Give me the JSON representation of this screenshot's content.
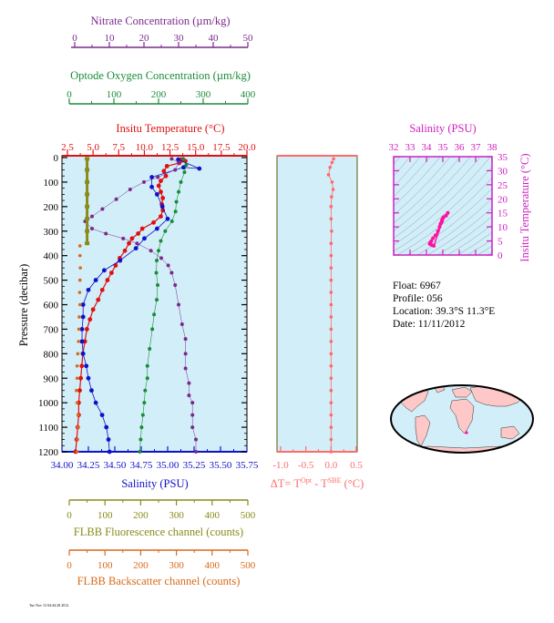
{
  "colors": {
    "nitrate": "#7a2a8c",
    "oxygen": "#1a8c3a",
    "temperature": "#e01010",
    "salinity": "#1010c8",
    "panel_bg": "#d2eef8",
    "fluorescence": "#8a8a1a",
    "backscatter": "#d86a1a",
    "delta_t": "#ff6a6a",
    "ts_axis": "#d020c0",
    "ts_points": "#ff10a0",
    "land": "#ffc8c8",
    "ocean": "#d2eef8",
    "depth_axis": "#000000",
    "delta_axis": "#5a5a10"
  },
  "axes": {
    "nitrate": {
      "title": "Nitrate Concentration (µm/kg)",
      "ticks": [
        "0",
        "10",
        "20",
        "30",
        "40",
        "50"
      ]
    },
    "oxygen": {
      "title": "Optode Oxygen Concentration (µm/kg)",
      "ticks": [
        "0",
        "100",
        "200",
        "300",
        "400"
      ]
    },
    "temperature": {
      "title": "Insitu Temperature (°C)",
      "ticks": [
        "2.5",
        "5.0",
        "7.5",
        "10.0",
        "12.5",
        "15.0",
        "17.5",
        "20.0"
      ]
    },
    "salinity": {
      "title": "Salinity (PSU)",
      "ticks": [
        "34.00",
        "34.25",
        "34.50",
        "34.75",
        "35.00",
        "35.25",
        "35.50",
        "35.75"
      ]
    },
    "pressure": {
      "title": "Pressure (decibar)",
      "ticks": [
        "0",
        "100",
        "200",
        "300",
        "400",
        "500",
        "600",
        "700",
        "800",
        "900",
        "1000",
        "1100",
        "1200"
      ]
    },
    "delta_t": {
      "title_prefix": "ΔT= T",
      "sup1": "Opt",
      "mid": " - T",
      "sup2": "SBE",
      "suffix": " (°C)",
      "ticks": [
        "-1.0",
        "-0.5",
        "0.0",
        "0.5"
      ]
    },
    "fluorescence": {
      "title": "FLBB Fluorescence channel (counts)",
      "ticks": [
        "0",
        "100",
        "200",
        "300",
        "400",
        "500"
      ]
    },
    "backscatter": {
      "title": "FLBB Backscatter channel (counts)",
      "ticks": [
        "0",
        "100",
        "200",
        "300",
        "400",
        "500"
      ]
    },
    "ts_salinity": {
      "title": "Salinity (PSU)",
      "ticks": [
        "32",
        "33",
        "34",
        "35",
        "36",
        "37",
        "38"
      ]
    },
    "ts_temperature": {
      "title": "Insitu Temperature (°C)",
      "ticks": [
        "0",
        "5",
        "10",
        "15",
        "20",
        "25",
        "30",
        "35"
      ]
    }
  },
  "info": {
    "float": "Float:  6967",
    "profile": "Profile:  056",
    "location": "Location:  39.3°S  11.3°E",
    "date": "Date:  11/11/2012"
  },
  "footer_text": "Tue Nov 13 04:44:28 2012",
  "chart_data": [
    {
      "type": "line",
      "name": "Profile panel",
      "ylabel": "Pressure (decibar)",
      "ylim": [
        1200,
        0
      ],
      "series": [
        {
          "name": "Insitu Temperature (°C)",
          "xlim": [
            2.5,
            20.0
          ],
          "points": [
            [
              13.6,
              8
            ],
            [
              14.0,
              14
            ],
            [
              13.4,
              22
            ],
            [
              12.2,
              35
            ],
            [
              11.9,
              55
            ],
            [
              12.1,
              75
            ],
            [
              11.6,
              95
            ],
            [
              11.4,
              115
            ],
            [
              11.6,
              140
            ],
            [
              11.8,
              165
            ],
            [
              11.7,
              190
            ],
            [
              11.8,
              215
            ],
            [
              11.6,
              240
            ],
            [
              10.9,
              265
            ],
            [
              9.8,
              290
            ],
            [
              9.4,
              310
            ],
            [
              8.8,
              330
            ],
            [
              8.5,
              350
            ],
            [
              8.1,
              380
            ],
            [
              7.6,
              410
            ],
            [
              7.2,
              440
            ],
            [
              6.8,
              470
            ],
            [
              6.4,
              500
            ],
            [
              5.9,
              540
            ],
            [
              5.5,
              580
            ],
            [
              5.0,
              620
            ],
            [
              4.7,
              660
            ],
            [
              4.4,
              700
            ],
            [
              4.2,
              750
            ],
            [
              4.0,
              800
            ],
            [
              3.9,
              850
            ],
            [
              3.8,
              900
            ],
            [
              3.7,
              950
            ],
            [
              3.6,
              1000
            ],
            [
              3.6,
              1050
            ],
            [
              3.5,
              1100
            ],
            [
              3.4,
              1150
            ],
            [
              3.3,
              1200
            ]
          ]
        },
        {
          "name": "Salinity (PSU)",
          "xlim": [
            34.0,
            35.75
          ],
          "points": [
            [
              35.1,
              8
            ],
            [
              35.3,
              45
            ],
            [
              35.15,
              40
            ],
            [
              34.85,
              80
            ],
            [
              34.85,
              120
            ],
            [
              34.9,
              150
            ],
            [
              34.95,
              200
            ],
            [
              35.0,
              250
            ],
            [
              34.9,
              290
            ],
            [
              34.78,
              330
            ],
            [
              34.7,
              370
            ],
            [
              34.55,
              420
            ],
            [
              34.4,
              460
            ],
            [
              34.32,
              500
            ],
            [
              34.25,
              540
            ],
            [
              34.2,
              600
            ],
            [
              34.2,
              650
            ],
            [
              34.19,
              700
            ],
            [
              34.19,
              750
            ],
            [
              34.2,
              800
            ],
            [
              34.23,
              850
            ],
            [
              34.25,
              900
            ],
            [
              34.28,
              950
            ],
            [
              34.32,
              1000
            ],
            [
              34.38,
              1050
            ],
            [
              34.42,
              1100
            ],
            [
              34.44,
              1150
            ],
            [
              34.45,
              1200
            ]
          ]
        },
        {
          "name": "Optode Oxygen Concentration (µm/kg)",
          "xlim": [
            0,
            400
          ],
          "points": [
            [
              255,
              5
            ],
            [
              262,
              30
            ],
            [
              258,
              60
            ],
            [
              250,
              100
            ],
            [
              245,
              140
            ],
            [
              240,
              180
            ],
            [
              238,
              220
            ],
            [
              230,
              260
            ],
            [
              215,
              300
            ],
            [
              205,
              340
            ],
            [
              200,
              380
            ],
            [
              196,
              420
            ],
            [
              195,
              470
            ],
            [
              198,
              520
            ],
            [
              196,
              580
            ],
            [
              190,
              640
            ],
            [
              186,
              700
            ],
            [
              180,
              780
            ],
            [
              175,
              850
            ],
            [
              175,
              900
            ],
            [
              170,
              950
            ],
            [
              168,
              1000
            ],
            [
              165,
              1050
            ],
            [
              162,
              1100
            ],
            [
              160,
              1150
            ],
            [
              158,
              1200
            ]
          ]
        },
        {
          "name": "Nitrate Concentration (µm/kg)",
          "xlim": [
            0,
            50
          ],
          "points": [
            [
              28,
              5
            ],
            [
              30,
              20
            ],
            [
              29,
              50
            ],
            [
              24,
              80
            ],
            [
              20,
              100
            ],
            [
              16,
              130
            ],
            [
              12,
              170
            ],
            [
              8,
              210
            ],
            [
              5,
              240
            ],
            [
              3,
              260
            ],
            [
              5,
              290
            ],
            [
              9,
              310
            ],
            [
              14,
              330
            ],
            [
              18,
              350
            ],
            [
              22,
              380
            ],
            [
              25,
              410
            ],
            [
              27,
              440
            ],
            [
              28,
              470
            ],
            [
              29,
              520
            ],
            [
              30,
              600
            ],
            [
              31,
              680
            ],
            [
              32,
              740
            ],
            [
              32,
              800
            ],
            [
              32,
              860
            ],
            [
              33,
              920
            ],
            [
              33,
              970
            ],
            [
              34,
              1000
            ],
            [
              34,
              1050
            ],
            [
              34,
              1100
            ],
            [
              35,
              1150
            ],
            [
              35,
              1200
            ]
          ]
        },
        {
          "name": "FLBB Fluorescence channel (counts)",
          "xlim": [
            0,
            500
          ],
          "points": [
            [
              50,
              5
            ],
            [
              50,
              50
            ],
            [
              50,
              100
            ],
            [
              50,
              150
            ],
            [
              50,
              200
            ],
            [
              50,
              250
            ],
            [
              50,
              300
            ],
            [
              50,
              350
            ]
          ]
        },
        {
          "name": "FLBB Backscatter channel (counts)",
          "xlim": [
            0,
            500
          ],
          "points": [
            [
              30,
              360
            ],
            [
              30,
              400
            ],
            [
              31,
              450
            ],
            [
              30,
              500
            ],
            [
              29,
              550
            ],
            [
              30,
              600
            ],
            [
              28,
              650
            ],
            [
              27,
              700
            ],
            [
              26,
              750
            ],
            [
              24,
              800
            ],
            [
              22,
              850
            ],
            [
              22,
              900
            ],
            [
              20,
              950
            ],
            [
              22,
              1000
            ],
            [
              25,
              1050
            ],
            [
              24,
              1100
            ],
            [
              23,
              1150
            ],
            [
              22,
              1200
            ]
          ]
        }
      ]
    },
    {
      "type": "line",
      "name": "Delta T panel",
      "xlim": [
        -1.0,
        0.5
      ],
      "ylim": [
        1200,
        0
      ],
      "series": [
        {
          "name": "ΔT",
          "points": [
            [
              0.05,
              5
            ],
            [
              0.02,
              20
            ],
            [
              -0.02,
              40
            ],
            [
              -0.05,
              70
            ],
            [
              0.02,
              100
            ],
            [
              0.04,
              130
            ],
            [
              0.01,
              160
            ],
            [
              0.0,
              200
            ],
            [
              0.0,
              250
            ],
            [
              0.01,
              300
            ],
            [
              0.0,
              350
            ],
            [
              0.0,
              400
            ],
            [
              0.0,
              450
            ],
            [
              0.0,
              500
            ],
            [
              0.0,
              550
            ],
            [
              0.0,
              600
            ],
            [
              0.0,
              650
            ],
            [
              0.0,
              700
            ],
            [
              0.0,
              750
            ],
            [
              0.0,
              800
            ],
            [
              0.0,
              850
            ],
            [
              0.0,
              900
            ],
            [
              0.0,
              950
            ],
            [
              0.0,
              1000
            ],
            [
              0.0,
              1050
            ],
            [
              0.0,
              1100
            ],
            [
              0.0,
              1150
            ],
            [
              0.0,
              1200
            ]
          ]
        }
      ]
    },
    {
      "type": "scatter",
      "name": "T-S diagram",
      "xlabel": "Salinity (PSU)",
      "ylabel": "Insitu Temperature (°C)",
      "xlim": [
        32,
        38
      ],
      "ylim": [
        0,
        35
      ],
      "series": [
        {
          "name": "T-S",
          "points": [
            [
              35.2,
              14
            ],
            [
              35.3,
              15
            ],
            [
              35.0,
              13
            ],
            [
              34.95,
              12
            ],
            [
              34.9,
              11.5
            ],
            [
              34.85,
              11
            ],
            [
              34.8,
              10
            ],
            [
              34.7,
              8.5
            ],
            [
              34.55,
              7
            ],
            [
              34.4,
              6
            ],
            [
              34.3,
              5
            ],
            [
              34.25,
              4.5
            ],
            [
              34.2,
              4
            ],
            [
              34.25,
              3.8
            ],
            [
              34.35,
              3.5
            ],
            [
              34.45,
              3.3
            ],
            [
              35.05,
              13.5
            ],
            [
              34.95,
              12.5
            ]
          ]
        }
      ]
    }
  ]
}
